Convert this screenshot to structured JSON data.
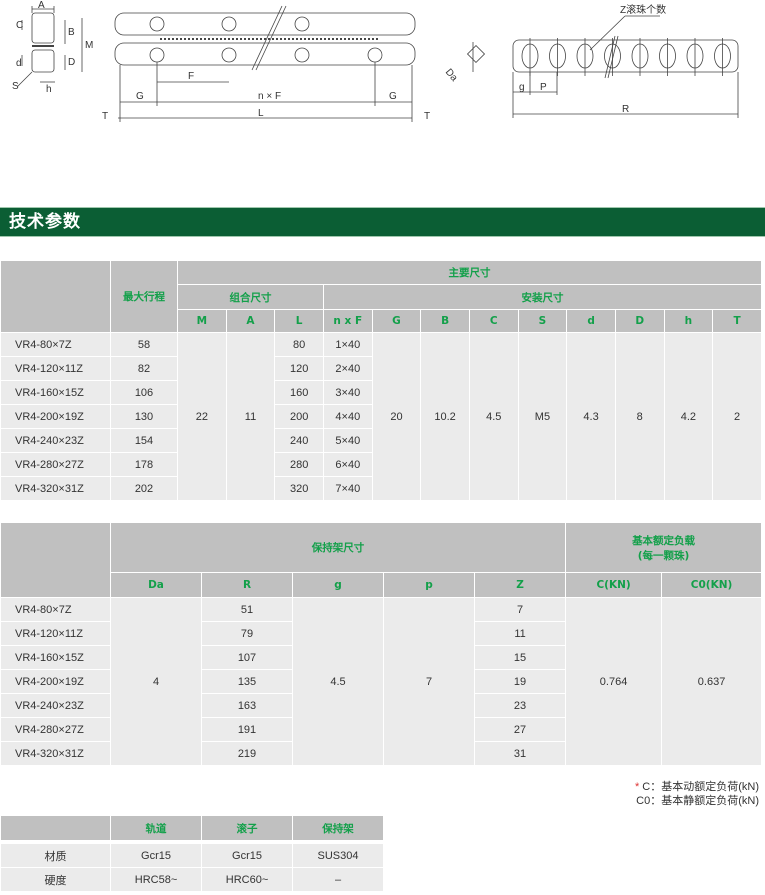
{
  "diagram": {
    "section_labels": [
      "A",
      "C",
      "B",
      "M",
      "d",
      "D",
      "S",
      "h"
    ],
    "rail_labels": {
      "F": "F",
      "G": "G",
      "nF": "n × F",
      "L": "L",
      "T": "T"
    },
    "cage_labels": {
      "Da": "Da",
      "Z": "Z滚珠个数",
      "g": "g",
      "P": "P",
      "R": "R"
    }
  },
  "section_title": "技术参数",
  "table1": {
    "header": {
      "stroke": "最大行程",
      "main": "主要尺寸",
      "combo": "组合尺寸",
      "install": "安装尺寸",
      "cols": [
        "M",
        "A",
        "L",
        "n x F",
        "G",
        "B",
        "C",
        "S",
        "d",
        "D",
        "h",
        "T"
      ]
    },
    "rows": [
      {
        "model": "VR4-80×7Z",
        "stroke": "58",
        "L": "80",
        "nF": "1×40"
      },
      {
        "model": "VR4-120×11Z",
        "stroke": "82",
        "L": "120",
        "nF": "2×40"
      },
      {
        "model": "VR4-160×15Z",
        "stroke": "106",
        "L": "160",
        "nF": "3×40"
      },
      {
        "model": "VR4-200×19Z",
        "stroke": "130",
        "L": "200",
        "nF": "4×40"
      },
      {
        "model": "VR4-240×23Z",
        "stroke": "154",
        "L": "240",
        "nF": "5×40"
      },
      {
        "model": "VR4-280×27Z",
        "stroke": "178",
        "L": "280",
        "nF": "6×40"
      },
      {
        "model": "VR4-320×31Z",
        "stroke": "202",
        "L": "320",
        "nF": "7×40"
      }
    ],
    "common": {
      "M": "22",
      "A": "11",
      "G": "20",
      "B": "10.2",
      "C": "4.5",
      "S": "M5",
      "d": "4.3",
      "D": "8",
      "h": "4.2",
      "T": "2"
    }
  },
  "table2": {
    "header": {
      "cage": "保持架尺寸",
      "load": "基本额定负载",
      "load_sub": "(每一颗珠)",
      "cols": [
        "Da",
        "R",
        "g",
        "p",
        "Z",
        "C(KN)",
        "C0(KN)"
      ]
    },
    "rows": [
      {
        "model": "VR4-80×7Z",
        "R": "51",
        "Z": "7"
      },
      {
        "model": "VR4-120×11Z",
        "R": "79",
        "Z": "11"
      },
      {
        "model": "VR4-160×15Z",
        "R": "107",
        "Z": "15"
      },
      {
        "model": "VR4-200×19Z",
        "R": "135",
        "Z": "19"
      },
      {
        "model": "VR4-240×23Z",
        "R": "163",
        "Z": "23"
      },
      {
        "model": "VR4-280×27Z",
        "R": "191",
        "Z": "27"
      },
      {
        "model": "VR4-320×31Z",
        "R": "219",
        "Z": "31"
      }
    ],
    "common": {
      "Da": "4",
      "g": "4.5",
      "p": "7",
      "C": "0.764",
      "C0": "0.637"
    }
  },
  "notes": [
    "C：基本动额定负荷(kN)",
    "C0：基本静额定负荷(kN)"
  ],
  "table3": {
    "cols": [
      "轨道",
      "滚子",
      "保持架"
    ],
    "rows": [
      {
        "label": "材质",
        "values": [
          "Gcr15",
          "Gcr15",
          "SUS304"
        ]
      },
      {
        "label": "硬度",
        "values": [
          "HRC58~",
          "HRC60~",
          "–"
        ]
      }
    ]
  },
  "colors": {
    "title_bar": "#0b5e34",
    "header_text": "#13a04a",
    "header_bg": "#c0c0c0",
    "body_bg": "#ebebeb"
  }
}
